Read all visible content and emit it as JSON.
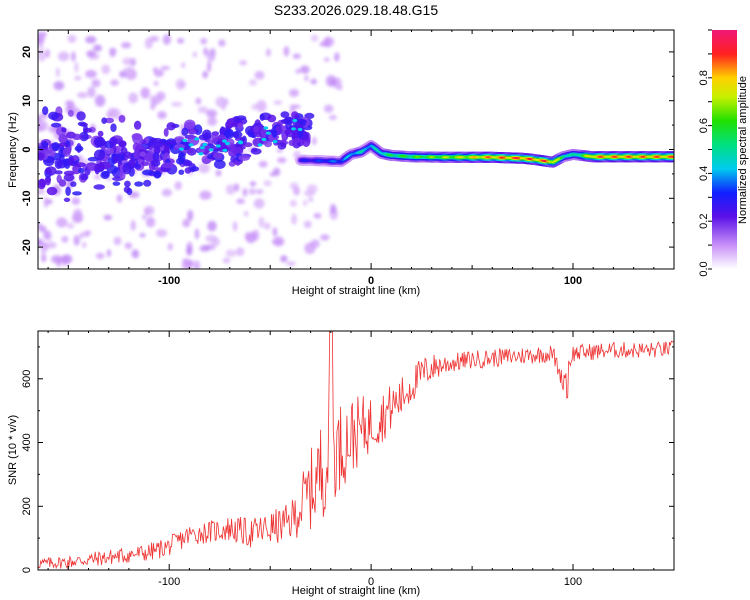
{
  "chart_data": [
    {
      "type": "heatmap",
      "title": "S233.2026.029.18.48.G15",
      "xlabel": "Height of straight line (km)",
      "ylabel": "Frequency (Hz)",
      "xlim": [
        -165,
        150
      ],
      "ylim": [
        -24.5,
        24.5
      ],
      "xticks": [
        "-100",
        "0",
        "100"
      ],
      "yticks": [
        "-20",
        "-10",
        "0",
        "10",
        "20"
      ],
      "colorbar": {
        "label": "Normalized spectral amplitude",
        "range": [
          0,
          1
        ],
        "ticks": [
          "0.0",
          "0.2",
          "0.4",
          "0.6",
          "0.8"
        ]
      },
      "ridge": {
        "x": [
          -35,
          -25,
          -15,
          -10,
          -5,
          0,
          5,
          10,
          20,
          40,
          60,
          75,
          80,
          85,
          90,
          95,
          100,
          110,
          150
        ],
        "freq_hz": [
          -2.2,
          -2.3,
          -2.5,
          -1.0,
          -0.5,
          0.8,
          -0.8,
          -1.2,
          -1.5,
          -1.6,
          -1.6,
          -1.8,
          -2.0,
          -2.3,
          -2.6,
          -1.5,
          -1.0,
          -1.5,
          -1.5
        ],
        "amplitude": [
          0.3,
          0.35,
          0.4,
          0.45,
          0.5,
          0.45,
          0.55,
          0.6,
          0.65,
          0.75,
          0.9,
          0.95,
          0.9,
          0.95,
          0.85,
          0.6,
          0.5,
          0.9,
          0.9
        ]
      }
    },
    {
      "type": "line",
      "xlabel": "Height of straight line (km)",
      "ylabel": "SNR (10 * v/v)",
      "xlim": [
        -165,
        150
      ],
      "ylim": [
        0,
        750
      ],
      "xticks": [
        "-100",
        "0",
        "100"
      ],
      "yticks": [
        "0",
        "200",
        "400",
        "600"
      ],
      "color": "#ee3333",
      "series": [
        {
          "name": "SNR",
          "x": [
            -165,
            -150,
            -130,
            -110,
            -100,
            -90,
            -80,
            -70,
            -60,
            -50,
            -40,
            -35,
            -30,
            -25,
            -20,
            -15,
            -10,
            -5,
            0,
            5,
            10,
            15,
            20,
            25,
            30,
            40,
            50,
            60,
            70,
            80,
            90,
            95,
            98,
            100,
            110,
            120,
            130,
            140,
            150
          ],
          "y": [
            20,
            25,
            40,
            55,
            75,
            110,
            120,
            130,
            115,
            130,
            150,
            200,
            250,
            310,
            360,
            390,
            420,
            440,
            460,
            480,
            510,
            540,
            580,
            615,
            635,
            650,
            660,
            665,
            670,
            675,
            680,
            590,
            650,
            680,
            685,
            690,
            690,
            690,
            695
          ]
        }
      ]
    }
  ]
}
